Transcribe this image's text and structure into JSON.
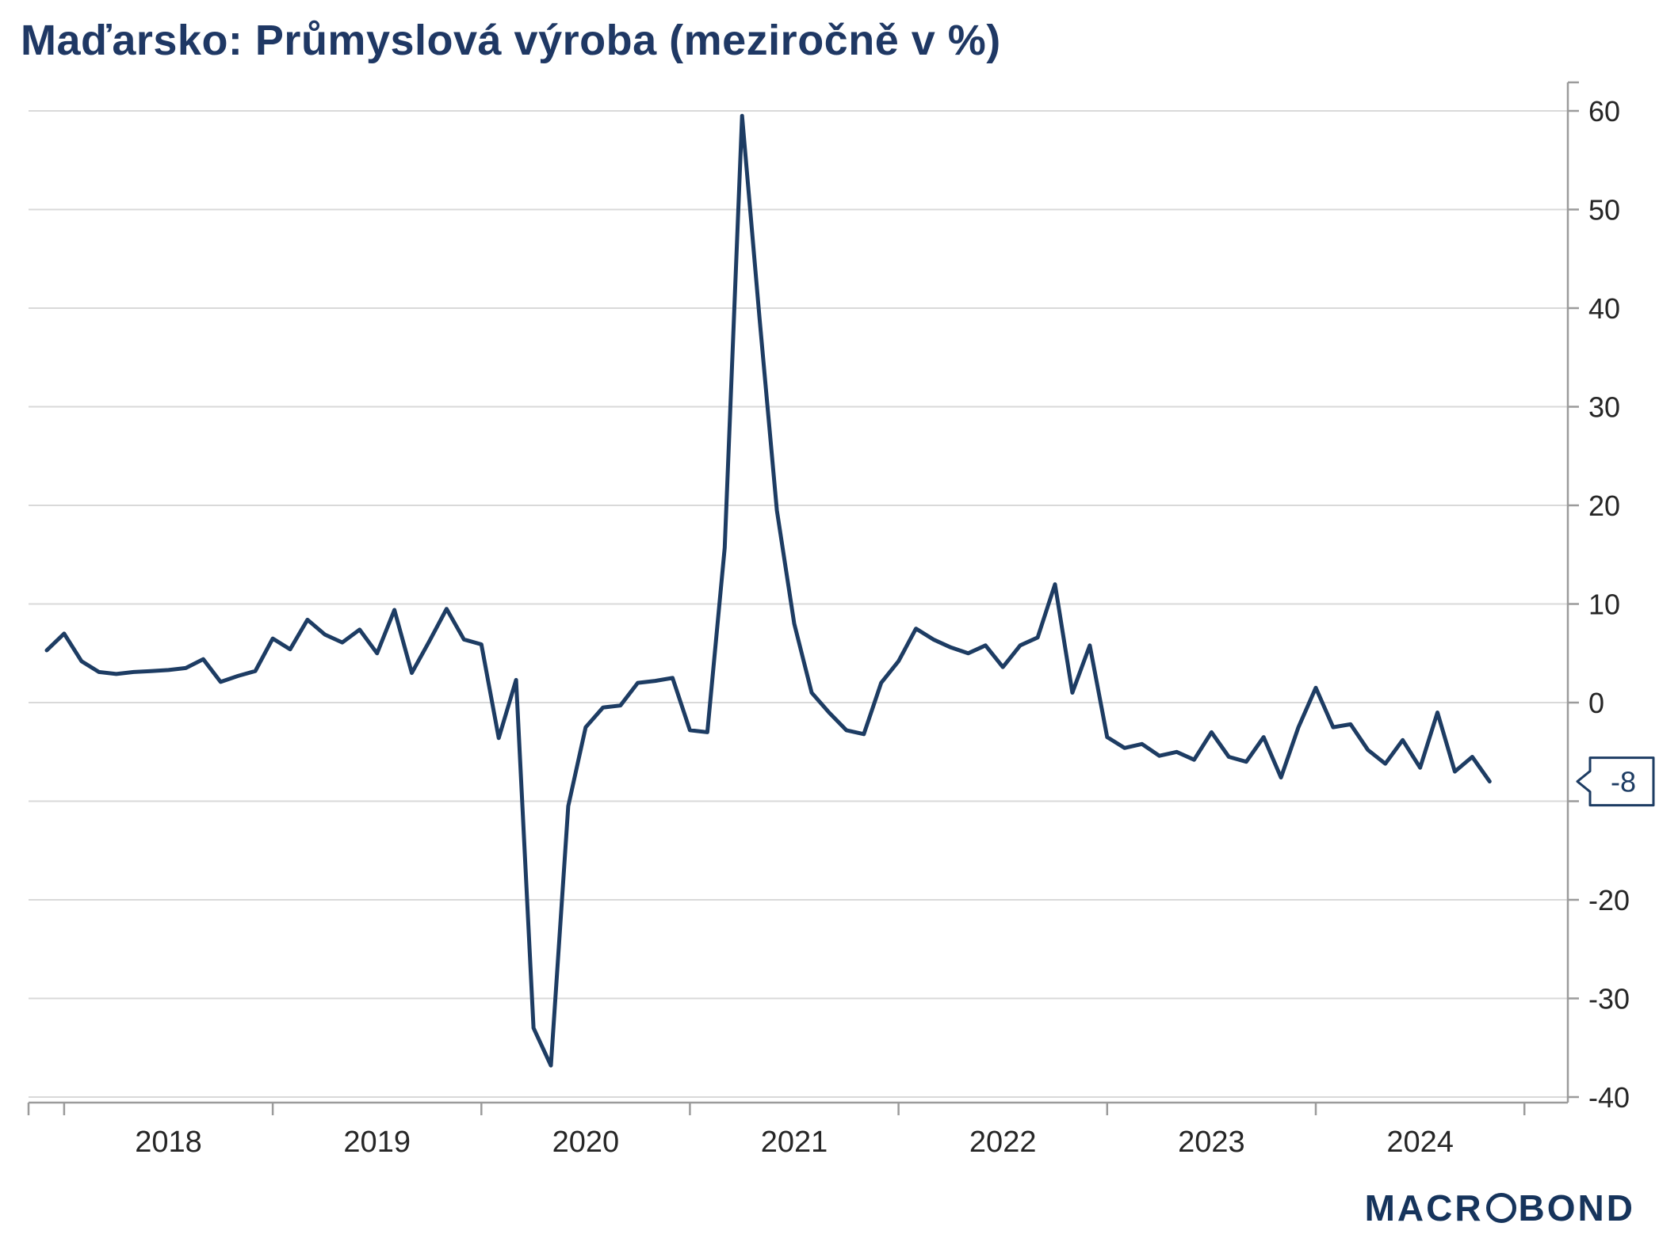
{
  "title": "Maďarsko: Průmyslová výroba (meziročně v %)",
  "logo": {
    "part1": "MACR",
    "part2": "BOND"
  },
  "colors": {
    "title": "#1f3864",
    "line": "#1d3c63",
    "grid": "#d9d9d9",
    "axis": "#9b9b9b",
    "tick_text": "#262626",
    "callout_border": "#1d3c63",
    "callout_fill": "#ffffff",
    "logo": "#16345c"
  },
  "callout": {
    "label": "-8",
    "value": -8
  },
  "chart_data": {
    "type": "line",
    "title": "Maďarsko: Průmyslová výroba (meziročně v %)",
    "unit": "%",
    "frequency": "monthly",
    "x_start": "2017-12",
    "x_end": "2024-11",
    "x_tick_years": [
      "2018",
      "2019",
      "2020",
      "2021",
      "2022",
      "2023",
      "2024"
    ],
    "ylim": [
      -40,
      60
    ],
    "y_gridlines": [
      60,
      50,
      40,
      30,
      20,
      10,
      0,
      -10,
      -20,
      -30,
      -40
    ],
    "y_label_values": [
      60,
      50,
      40,
      30,
      20,
      10,
      0,
      -20,
      -30,
      -40
    ],
    "grid": true,
    "legend": "none",
    "axis_side": "right",
    "last_value_label": -8,
    "values": [
      5.3,
      7.0,
      4.2,
      3.1,
      2.9,
      3.1,
      3.2,
      3.3,
      3.5,
      4.4,
      2.1,
      2.7,
      3.2,
      6.5,
      5.4,
      8.4,
      6.9,
      6.1,
      7.4,
      5.0,
      9.4,
      3.0,
      6.2,
      9.5,
      6.4,
      5.9,
      -3.6,
      2.3,
      -33.0,
      -36.8,
      -10.5,
      -2.5,
      -0.5,
      -0.3,
      2.0,
      2.2,
      2.5,
      -2.8,
      -3.0,
      15.7,
      59.5,
      39.0,
      19.5,
      8.0,
      1.0,
      -1.0,
      -2.8,
      -3.2,
      2.0,
      4.2,
      7.5,
      6.4,
      5.6,
      5.0,
      5.8,
      3.6,
      5.8,
      6.6,
      12.0,
      1.0,
      5.8,
      -3.5,
      -4.6,
      -4.2,
      -5.4,
      -5.0,
      -5.8,
      -3.0,
      -5.5,
      -6.0,
      -3.5,
      -7.6,
      -2.5,
      1.5,
      -2.5,
      -2.2,
      -4.8,
      -6.2,
      -3.8,
      -6.6,
      -1.0,
      -7.0,
      -5.5,
      -8.0
    ]
  }
}
